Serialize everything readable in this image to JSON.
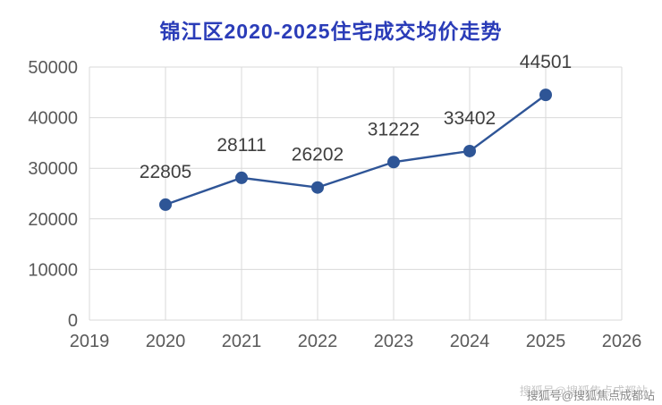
{
  "title": {
    "text": "锦江区2020-2025住宅成交均价走势",
    "color": "#2a3cb8"
  },
  "chart_data": {
    "type": "line",
    "title": "锦江区2020-2025住宅成交均价走势",
    "x": [
      2020,
      2021,
      2022,
      2023,
      2024,
      2025
    ],
    "values": [
      22805,
      28111,
      26202,
      31222,
      33402,
      44501
    ],
    "point_labels": [
      "22805",
      "28111",
      "26202",
      "31222",
      "33402",
      "44501"
    ],
    "xlabel": "",
    "ylabel": "",
    "xlim": [
      2019,
      2026
    ],
    "ylim": [
      0,
      50000
    ],
    "xticks": [
      2019,
      2020,
      2021,
      2022,
      2023,
      2024,
      2025,
      2026
    ],
    "yticks": [
      0,
      10000,
      20000,
      30000,
      40000,
      50000
    ],
    "grid": true,
    "legend": false,
    "line_color": "#2f5597",
    "marker_color": "#2e5596",
    "label_color": "#3f3f3f",
    "axis_text_color": "#595959",
    "grid_color": "#d9d9d9"
  },
  "watermark": {
    "text": "搜狐号@搜狐焦点成都站"
  }
}
